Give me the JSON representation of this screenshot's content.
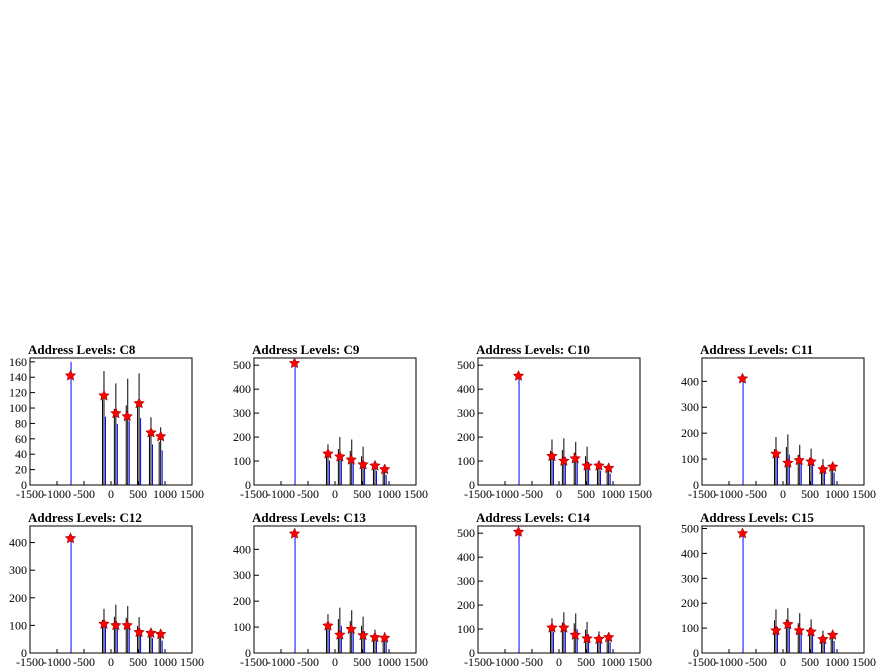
{
  "chart_data": [
    {
      "type": "bar",
      "title": "Address Levels: C8",
      "xlim": [
        -1500,
        1500
      ],
      "xticks": [
        -1500,
        -1000,
        -500,
        0,
        500,
        1000,
        1500
      ],
      "ylim": [
        0,
        165
      ],
      "yticks": [
        0,
        20,
        40,
        60,
        80,
        100,
        120,
        140,
        160
      ],
      "bars": [
        [
          -740,
          160
        ],
        [
          -130,
          148
        ],
        [
          90,
          132
        ],
        [
          310,
          138
        ],
        [
          520,
          145
        ],
        [
          740,
          88
        ],
        [
          920,
          75
        ]
      ],
      "peaks": [
        [
          -750,
          142
        ],
        [
          -130,
          116
        ],
        [
          90,
          93
        ],
        [
          300,
          89
        ],
        [
          520,
          106
        ],
        [
          740,
          68
        ],
        [
          920,
          63
        ]
      ]
    },
    {
      "type": "bar",
      "title": "Address Levels: C9",
      "xlim": [
        -1500,
        1500
      ],
      "xticks": [
        -1500,
        -1000,
        -500,
        0,
        500,
        1000,
        1500
      ],
      "ylim": [
        0,
        530
      ],
      "yticks": [
        0,
        100,
        200,
        300,
        400,
        500
      ],
      "bars": [
        [
          -740,
          510
        ],
        [
          -130,
          170
        ],
        [
          90,
          200
        ],
        [
          310,
          190
        ],
        [
          520,
          160
        ],
        [
          740,
          100
        ],
        [
          920,
          70
        ]
      ],
      "peaks": [
        [
          -750,
          508
        ],
        [
          -130,
          130
        ],
        [
          90,
          118
        ],
        [
          300,
          105
        ],
        [
          520,
          85
        ],
        [
          740,
          80
        ],
        [
          920,
          65
        ]
      ]
    },
    {
      "type": "bar",
      "title": "Address Levels: C10",
      "xlim": [
        -1500,
        1500
      ],
      "xticks": [
        -1500,
        -1000,
        -500,
        0,
        500,
        1000,
        1500
      ],
      "ylim": [
        0,
        530
      ],
      "yticks": [
        0,
        100,
        200,
        300,
        400,
        500
      ],
      "bars": [
        [
          -740,
          470
        ],
        [
          -130,
          190
        ],
        [
          90,
          195
        ],
        [
          310,
          180
        ],
        [
          520,
          160
        ],
        [
          740,
          100
        ],
        [
          920,
          80
        ]
      ],
      "peaks": [
        [
          -750,
          455
        ],
        [
          -130,
          120
        ],
        [
          90,
          100
        ],
        [
          300,
          110
        ],
        [
          520,
          80
        ],
        [
          740,
          80
        ],
        [
          920,
          70
        ]
      ]
    },
    {
      "type": "bar",
      "title": "Address Levels: C11",
      "xlim": [
        -1500,
        1500
      ],
      "xticks": [
        -1500,
        -1000,
        -500,
        0,
        500,
        1000,
        1500
      ],
      "ylim": [
        0,
        490
      ],
      "yticks": [
        0,
        100,
        200,
        300,
        400
      ],
      "bars": [
        [
          -740,
          420
        ],
        [
          -130,
          185
        ],
        [
          90,
          195
        ],
        [
          310,
          155
        ],
        [
          520,
          140
        ],
        [
          740,
          100
        ],
        [
          920,
          80
        ]
      ],
      "peaks": [
        [
          -750,
          410
        ],
        [
          -130,
          120
        ],
        [
          90,
          85
        ],
        [
          300,
          95
        ],
        [
          520,
          90
        ],
        [
          740,
          60
        ],
        [
          920,
          70
        ]
      ]
    },
    {
      "type": "bar",
      "title": "Address Levels: C12",
      "xlim": [
        -1500,
        1500
      ],
      "xticks": [
        -1500,
        -1000,
        -500,
        0,
        500,
        1000,
        1500
      ],
      "ylim": [
        0,
        460
      ],
      "yticks": [
        0,
        100,
        200,
        300,
        400
      ],
      "bars": [
        [
          -740,
          430
        ],
        [
          -130,
          160
        ],
        [
          90,
          175
        ],
        [
          310,
          170
        ],
        [
          520,
          130
        ],
        [
          740,
          90
        ],
        [
          920,
          75
        ]
      ],
      "peaks": [
        [
          -750,
          415
        ],
        [
          -130,
          105
        ],
        [
          90,
          100
        ],
        [
          300,
          100
        ],
        [
          520,
          75
        ],
        [
          740,
          72
        ],
        [
          920,
          68
        ]
      ]
    },
    {
      "type": "bar",
      "title": "Address Levels: C13",
      "xlim": [
        -1500,
        1500
      ],
      "xticks": [
        -1500,
        -1000,
        -500,
        0,
        500,
        1000,
        1500
      ],
      "ylim": [
        0,
        490
      ],
      "yticks": [
        0,
        100,
        200,
        300,
        400
      ],
      "bars": [
        [
          -740,
          480
        ],
        [
          -130,
          150
        ],
        [
          90,
          175
        ],
        [
          310,
          165
        ],
        [
          520,
          140
        ],
        [
          740,
          90
        ],
        [
          920,
          80
        ]
      ],
      "peaks": [
        [
          -750,
          460
        ],
        [
          -130,
          105
        ],
        [
          90,
          70
        ],
        [
          300,
          92
        ],
        [
          520,
          68
        ],
        [
          740,
          60
        ],
        [
          920,
          58
        ]
      ]
    },
    {
      "type": "bar",
      "title": "Address Levels: C14",
      "xlim": [
        -1500,
        1500
      ],
      "xticks": [
        -1500,
        -1000,
        -500,
        0,
        500,
        1000,
        1500
      ],
      "ylim": [
        0,
        530
      ],
      "yticks": [
        0,
        100,
        200,
        300,
        400,
        500
      ],
      "bars": [
        [
          -740,
          520
        ],
        [
          -130,
          145
        ],
        [
          90,
          170
        ],
        [
          310,
          165
        ],
        [
          520,
          130
        ],
        [
          740,
          90
        ],
        [
          920,
          75
        ]
      ],
      "peaks": [
        [
          -750,
          505
        ],
        [
          -130,
          105
        ],
        [
          90,
          105
        ],
        [
          300,
          75
        ],
        [
          520,
          60
        ],
        [
          740,
          58
        ],
        [
          920,
          65
        ]
      ]
    },
    {
      "type": "bar",
      "title": "Address Levels: C15",
      "xlim": [
        -1500,
        1500
      ],
      "xticks": [
        -1500,
        -1000,
        -500,
        0,
        500,
        1000,
        1500
      ],
      "ylim": [
        0,
        510
      ],
      "yticks": [
        0,
        100,
        200,
        300,
        400,
        500
      ],
      "bars": [
        [
          -740,
          490
        ],
        [
          -130,
          175
        ],
        [
          90,
          180
        ],
        [
          310,
          160
        ],
        [
          520,
          135
        ],
        [
          740,
          90
        ],
        [
          920,
          80
        ]
      ],
      "peaks": [
        [
          -750,
          480
        ],
        [
          -130,
          90
        ],
        [
          90,
          115
        ],
        [
          300,
          90
        ],
        [
          520,
          85
        ],
        [
          740,
          55
        ],
        [
          920,
          72
        ]
      ]
    }
  ]
}
